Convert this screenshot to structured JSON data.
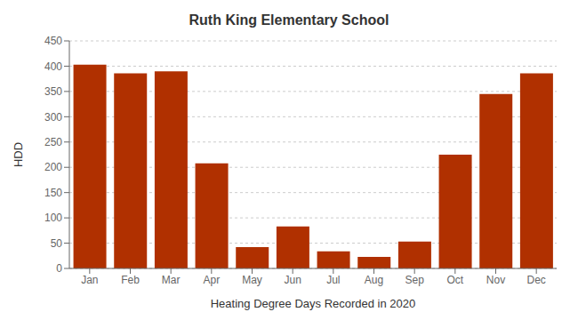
{
  "chart_data": {
    "type": "bar",
    "title": "Ruth King Elementary School",
    "xlabel": "Heating Degree Days Recorded in 2020",
    "ylabel": "HDD",
    "categories": [
      "Jan",
      "Feb",
      "Mar",
      "Apr",
      "May",
      "Jun",
      "Jul",
      "Aug",
      "Sep",
      "Oct",
      "Nov",
      "Dec"
    ],
    "values": [
      403,
      386,
      390,
      208,
      42,
      83,
      34,
      23,
      53,
      225,
      345,
      386
    ],
    "color": "#b03000",
    "ylim": [
      0,
      450
    ],
    "yticks": [
      0,
      50,
      100,
      150,
      200,
      250,
      300,
      350,
      400,
      450
    ],
    "grid": true
  }
}
